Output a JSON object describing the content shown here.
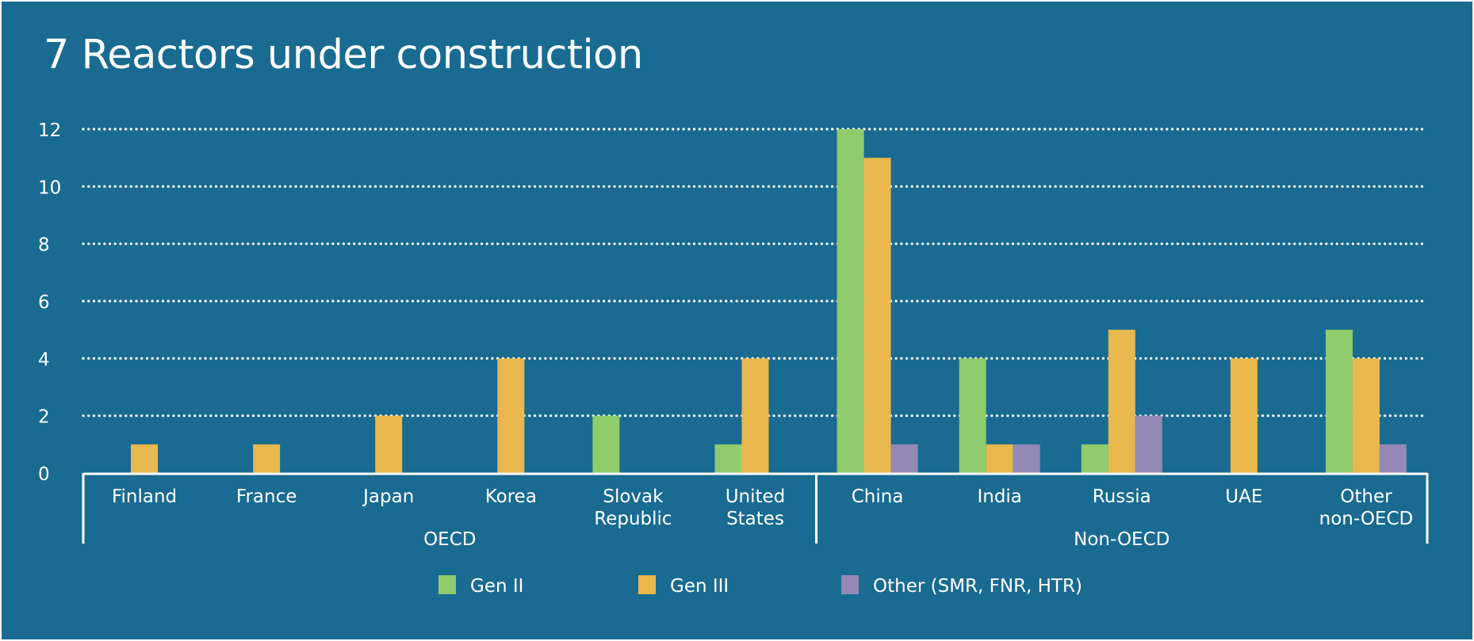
{
  "title": "7 Reactors under construction",
  "colors": {
    "background": "#196b91",
    "text": "#ffffff",
    "gen2": "#8fcc6c",
    "gen3": "#e8b84e",
    "other": "#9388b6"
  },
  "chart_data": {
    "type": "bar",
    "title": "7 Reactors under construction",
    "xlabel": "",
    "ylabel": "",
    "ylim": [
      0,
      12
    ],
    "yticks": [
      0,
      2,
      4,
      6,
      8,
      10,
      12
    ],
    "grid": true,
    "categories": [
      [
        "Finland"
      ],
      [
        "France"
      ],
      [
        "Japan"
      ],
      [
        "Korea"
      ],
      [
        "Slovak",
        "Republic"
      ],
      [
        "United",
        "States"
      ],
      [
        "China"
      ],
      [
        "India"
      ],
      [
        "Russia"
      ],
      [
        "UAE"
      ],
      [
        "Other",
        "non-OECD"
      ]
    ],
    "groups": [
      {
        "label": "OECD",
        "start": 0,
        "end": 5
      },
      {
        "label": "Non-OECD",
        "start": 6,
        "end": 10
      }
    ],
    "series": [
      {
        "name": "Gen II",
        "color": "#8fcc6c",
        "values": [
          0,
          0,
          0,
          0,
          2,
          1,
          12,
          4,
          1,
          0,
          5
        ]
      },
      {
        "name": "Gen III",
        "color": "#e8b84e",
        "values": [
          1,
          1,
          2,
          4,
          0,
          4,
          11,
          1,
          5,
          4,
          4
        ]
      },
      {
        "name": "Other (SMR, FNR, HTR)",
        "color": "#9388b6",
        "values": [
          0,
          0,
          0,
          0,
          0,
          0,
          1,
          1,
          2,
          0,
          1
        ]
      }
    ],
    "legend_position": "bottom-center"
  }
}
